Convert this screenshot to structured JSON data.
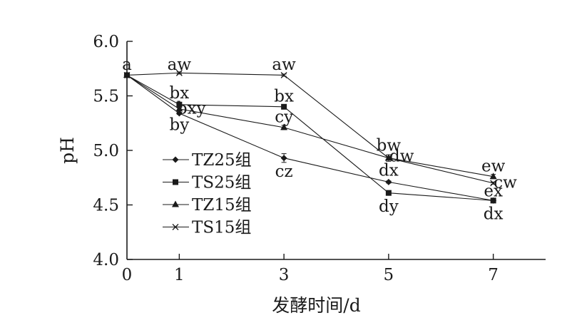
{
  "chart_data": {
    "type": "line",
    "title": "",
    "xlabel": "发酵时间/d",
    "ylabel": "pH",
    "x": [
      0,
      1,
      3,
      5,
      7
    ],
    "x_tick_labels": [
      "0",
      "1",
      "3",
      "5",
      "7"
    ],
    "xlim": [
      0,
      8
    ],
    "ylim": [
      4.0,
      6.0
    ],
    "y_ticks": [
      4.0,
      4.5,
      5.0,
      5.5,
      6.0
    ],
    "y_tick_labels": [
      "4.0",
      "4.5",
      "5.0",
      "5.5",
      "6.0"
    ],
    "grid": false,
    "legend_position": "lower-left",
    "series": [
      {
        "name": "TZ25组",
        "marker": "diamond",
        "values": [
          5.69,
          5.34,
          4.93,
          4.71,
          4.54
        ],
        "errors": [
          0.01,
          0.01,
          0.04,
          0.01,
          0.01
        ]
      },
      {
        "name": "TS25组",
        "marker": "square",
        "values": [
          5.69,
          5.42,
          5.4,
          4.61,
          4.54
        ],
        "errors": [
          0.01,
          0.02,
          0.02,
          0.01,
          0.01
        ]
      },
      {
        "name": "TZ15组",
        "marker": "triangle",
        "values": [
          5.69,
          5.38,
          5.21,
          4.93,
          4.76
        ],
        "errors": [
          0.01,
          0.01,
          0.02,
          0.03,
          0.02
        ]
      },
      {
        "name": "TS15组",
        "marker": "x",
        "values": [
          5.69,
          5.71,
          5.69,
          4.93,
          4.7
        ],
        "errors": [
          0.01,
          0.01,
          0.01,
          0.01,
          0.01
        ]
      }
    ],
    "annotations": [
      {
        "text": "a",
        "x": 0,
        "y": 5.79
      },
      {
        "text": "aw",
        "x": 1,
        "y": 5.79
      },
      {
        "text": "aw",
        "x": 3,
        "y": 5.79
      },
      {
        "text": "bx",
        "x": 1,
        "y": 5.53
      },
      {
        "text": "bxy",
        "x": 1.23,
        "y": 5.39
      },
      {
        "text": "by",
        "x": 1,
        "y": 5.24
      },
      {
        "text": "bx",
        "x": 3,
        "y": 5.5
      },
      {
        "text": "cy",
        "x": 3,
        "y": 5.31
      },
      {
        "text": "cz",
        "x": 3,
        "y": 4.81
      },
      {
        "text": "bw",
        "x": 5,
        "y": 5.05
      },
      {
        "text": "dw",
        "x": 5.25,
        "y": 4.95
      },
      {
        "text": "dx",
        "x": 5,
        "y": 4.82
      },
      {
        "text": "dy",
        "x": 5,
        "y": 4.49
      },
      {
        "text": "ew",
        "x": 7,
        "y": 4.86
      },
      {
        "text": "cw",
        "x": 7.23,
        "y": 4.71
      },
      {
        "text": "ex",
        "x": 7,
        "y": 4.63
      },
      {
        "text": "dx",
        "x": 7,
        "y": 4.42
      }
    ]
  }
}
